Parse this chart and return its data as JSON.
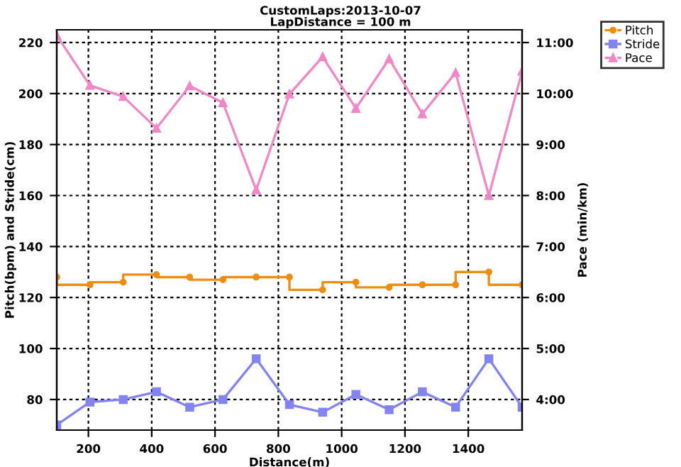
{
  "chart_data": {
    "type": "line",
    "title": "CustomLaps:2013-10-07",
    "subtitle": "LapDistance = 100 m",
    "xlabel": "Distance(m)",
    "ylabel": "Pitch(bpm) and Stride(cm)",
    "y2label": "Pace (min/km)",
    "x": [
      100,
      205,
      310,
      415,
      520,
      625,
      730,
      835,
      940,
      1045,
      1150,
      1255,
      1360,
      1465,
      1570
    ],
    "series": [
      {
        "name": "Pitch",
        "type": "step",
        "marker": "circle",
        "color": "#f08c10",
        "values": [
          128,
          125,
          126,
          129,
          128,
          127,
          128,
          128,
          123,
          126,
          124,
          125,
          125,
          130,
          125
        ]
      },
      {
        "name": "Stride",
        "marker": "square",
        "color": "#8484f0",
        "values": [
          70,
          79,
          80,
          83,
          77,
          80,
          96,
          78,
          75,
          82,
          76,
          83,
          77,
          96,
          77
        ]
      },
      {
        "name": "Pace",
        "marker": "triangle",
        "color": "#f088c8",
        "axis": "y2",
        "values": [
          11.14,
          10.16,
          9.94,
          9.32,
          10.15,
          9.82,
          8.11,
          9.99,
          10.72,
          9.71,
          10.68,
          9.6,
          10.41,
          8.0,
          10.44
        ]
      }
    ],
    "xlim": [
      100,
      1570
    ],
    "xticks": [
      200,
      400,
      600,
      800,
      1000,
      1200,
      1400
    ],
    "ylim": [
      68,
      225
    ],
    "yticks": [
      80,
      100,
      120,
      140,
      160,
      180,
      200,
      220
    ],
    "y2lim": [
      3.4,
      11.25
    ],
    "y2ticks": [
      {
        "value": 4,
        "label": "4:00"
      },
      {
        "value": 5,
        "label": "5:00"
      },
      {
        "value": 6,
        "label": "6:00"
      },
      {
        "value": 7,
        "label": "7:00"
      },
      {
        "value": 8,
        "label": "8:00"
      },
      {
        "value": 9,
        "label": "9:00"
      },
      {
        "value": 10,
        "label": "10:00"
      },
      {
        "value": 11,
        "label": "11:00"
      }
    ],
    "grid": true,
    "legend": "top right",
    "line_style": "solid"
  }
}
